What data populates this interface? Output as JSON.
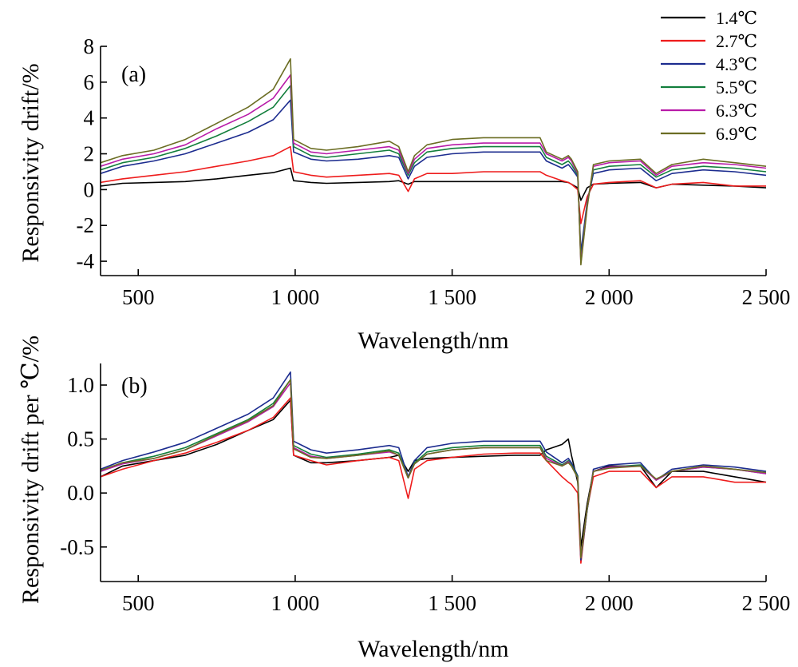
{
  "chart_data": [
    {
      "type": "line",
      "panel_label": "(a)",
      "xlabel": "Wavelength/nm",
      "ylabel": "Responsivity drift/%",
      "xlim": [
        380,
        2500
      ],
      "ylim": [
        -4.8,
        8
      ],
      "x_ticks": [
        {
          "value": 500,
          "label": "500"
        },
        {
          "value": 1000,
          "label": "1 000"
        },
        {
          "value": 1500,
          "label": "1 500"
        },
        {
          "value": 2000,
          "label": "2 000"
        },
        {
          "value": 2500,
          "label": "2 500"
        }
      ],
      "y_ticks": [
        {
          "value": -4,
          "label": "-4"
        },
        {
          "value": -2,
          "label": "-2"
        },
        {
          "value": 0,
          "label": "0"
        },
        {
          "value": 2,
          "label": "2"
        },
        {
          "value": 4,
          "label": "4"
        },
        {
          "value": 6,
          "label": "6"
        },
        {
          "value": 8,
          "label": "8"
        }
      ],
      "legend": {
        "position": "top-right"
      },
      "x": [
        380,
        450,
        550,
        650,
        750,
        850,
        930,
        985,
        995,
        1050,
        1100,
        1200,
        1300,
        1330,
        1360,
        1380,
        1420,
        1500,
        1600,
        1700,
        1780,
        1800,
        1850,
        1870,
        1880,
        1900,
        1910,
        1930,
        1950,
        2000,
        2100,
        2150,
        2200,
        2300,
        2400,
        2500
      ],
      "series": [
        {
          "name": "1.4℃",
          "color": "#000000",
          "values": [
            0.2,
            0.35,
            0.4,
            0.45,
            0.6,
            0.8,
            0.95,
            1.2,
            0.5,
            0.4,
            0.35,
            0.4,
            0.45,
            0.5,
            0.3,
            0.45,
            0.45,
            0.45,
            0.45,
            0.45,
            0.45,
            0.45,
            0.45,
            0.4,
            0.3,
            0.1,
            -0.6,
            0.1,
            0.3,
            0.35,
            0.4,
            0.1,
            0.3,
            0.25,
            0.2,
            0.1
          ]
        },
        {
          "name": "2.7℃",
          "color": "#ee1c1c",
          "values": [
            0.4,
            0.6,
            0.8,
            1.0,
            1.3,
            1.6,
            1.9,
            2.4,
            1.0,
            0.8,
            0.7,
            0.8,
            0.9,
            0.8,
            -0.1,
            0.6,
            0.9,
            0.9,
            1.0,
            1.0,
            1.0,
            0.8,
            0.5,
            0.4,
            0.3,
            0.0,
            -1.9,
            -0.4,
            0.3,
            0.4,
            0.5,
            0.1,
            0.3,
            0.4,
            0.2,
            0.2
          ]
        },
        {
          "name": "4.3℃",
          "color": "#1c2c8f",
          "values": [
            0.9,
            1.3,
            1.6,
            2.0,
            2.6,
            3.2,
            3.9,
            5.0,
            2.1,
            1.7,
            1.6,
            1.7,
            1.9,
            1.8,
            0.6,
            1.3,
            1.8,
            2.0,
            2.1,
            2.1,
            2.1,
            1.6,
            1.2,
            1.4,
            1.2,
            0.7,
            -3.5,
            -0.7,
            0.9,
            1.1,
            1.2,
            0.5,
            0.9,
            1.1,
            1.0,
            0.8
          ]
        },
        {
          "name": "5.5℃",
          "color": "#137f3c",
          "values": [
            1.1,
            1.5,
            1.8,
            2.3,
            3.0,
            3.8,
            4.6,
            5.8,
            2.4,
            1.9,
            1.8,
            2.0,
            2.2,
            2.0,
            0.8,
            1.5,
            2.1,
            2.3,
            2.4,
            2.4,
            2.4,
            1.8,
            1.4,
            1.6,
            1.4,
            0.8,
            -3.9,
            -0.8,
            1.1,
            1.3,
            1.4,
            0.7,
            1.1,
            1.3,
            1.2,
            1.0
          ]
        },
        {
          "name": "6.3℃",
          "color": "#b81ba8",
          "values": [
            1.3,
            1.7,
            2.0,
            2.5,
            3.4,
            4.2,
            5.1,
            6.4,
            2.6,
            2.1,
            2.0,
            2.2,
            2.4,
            2.2,
            0.9,
            1.7,
            2.3,
            2.5,
            2.6,
            2.6,
            2.6,
            2.0,
            1.6,
            1.8,
            1.6,
            0.9,
            -4.1,
            -0.9,
            1.3,
            1.5,
            1.6,
            0.8,
            1.3,
            1.5,
            1.4,
            1.2
          ]
        },
        {
          "name": "6.9℃",
          "color": "#6b6d23",
          "values": [
            1.5,
            1.9,
            2.2,
            2.8,
            3.7,
            4.6,
            5.6,
            7.3,
            2.8,
            2.3,
            2.2,
            2.4,
            2.7,
            2.4,
            1.0,
            1.9,
            2.5,
            2.8,
            2.9,
            2.9,
            2.9,
            2.1,
            1.7,
            1.9,
            1.7,
            1.0,
            -4.2,
            -1.0,
            1.4,
            1.6,
            1.7,
            0.9,
            1.4,
            1.7,
            1.5,
            1.3
          ]
        }
      ]
    },
    {
      "type": "line",
      "panel_label": "(b)",
      "xlabel": "Wavelength/nm",
      "ylabel": "Responsivity drift per ℃/%",
      "xlim": [
        380,
        2500
      ],
      "ylim": [
        -0.82,
        1.2
      ],
      "x_ticks": [
        {
          "value": 500,
          "label": "500"
        },
        {
          "value": 1000,
          "label": "1 000"
        },
        {
          "value": 1500,
          "label": "1 500"
        },
        {
          "value": 2000,
          "label": "2 000"
        },
        {
          "value": 2500,
          "label": "2 500"
        }
      ],
      "y_ticks": [
        {
          "value": -0.5,
          "label": "-0.5"
        },
        {
          "value": 0.0,
          "label": "0.0"
        },
        {
          "value": 0.5,
          "label": "0.5"
        },
        {
          "value": 1.0,
          "label": "1.0"
        }
      ],
      "x": [
        380,
        450,
        550,
        650,
        750,
        850,
        930,
        985,
        995,
        1050,
        1100,
        1200,
        1300,
        1330,
        1360,
        1380,
        1420,
        1500,
        1600,
        1700,
        1780,
        1800,
        1850,
        1870,
        1880,
        1900,
        1910,
        1930,
        1950,
        2000,
        2100,
        2150,
        2200,
        2300,
        2400,
        2500
      ],
      "series": [
        {
          "name": "1.4℃",
          "color": "#000000",
          "values": [
            0.15,
            0.25,
            0.3,
            0.35,
            0.45,
            0.58,
            0.68,
            0.86,
            0.35,
            0.28,
            0.28,
            0.3,
            0.33,
            0.35,
            0.2,
            0.3,
            0.32,
            0.33,
            0.34,
            0.35,
            0.35,
            0.4,
            0.45,
            0.5,
            0.35,
            0.1,
            -0.5,
            -0.1,
            0.2,
            0.25,
            0.25,
            0.05,
            0.2,
            0.2,
            0.15,
            0.1
          ]
        },
        {
          "name": "2.7℃",
          "color": "#ee1c1c",
          "values": [
            0.15,
            0.22,
            0.3,
            0.37,
            0.47,
            0.58,
            0.7,
            0.88,
            0.35,
            0.3,
            0.26,
            0.3,
            0.33,
            0.3,
            -0.05,
            0.22,
            0.3,
            0.33,
            0.36,
            0.37,
            0.37,
            0.3,
            0.15,
            0.1,
            0.08,
            0.0,
            -0.65,
            -0.15,
            0.15,
            0.2,
            0.2,
            0.05,
            0.15,
            0.15,
            0.1,
            0.1
          ]
        },
        {
          "name": "4.3℃",
          "color": "#1c2c8f",
          "values": [
            0.22,
            0.3,
            0.38,
            0.47,
            0.6,
            0.73,
            0.88,
            1.12,
            0.48,
            0.4,
            0.37,
            0.4,
            0.44,
            0.42,
            0.15,
            0.3,
            0.42,
            0.46,
            0.48,
            0.48,
            0.48,
            0.38,
            0.28,
            0.32,
            0.28,
            0.16,
            -0.62,
            -0.16,
            0.22,
            0.26,
            0.28,
            0.12,
            0.22,
            0.26,
            0.24,
            0.2
          ]
        },
        {
          "name": "5.5℃",
          "color": "#137f3c",
          "values": [
            0.2,
            0.28,
            0.34,
            0.42,
            0.55,
            0.68,
            0.83,
            1.05,
            0.44,
            0.36,
            0.33,
            0.36,
            0.4,
            0.37,
            0.14,
            0.28,
            0.38,
            0.42,
            0.44,
            0.44,
            0.44,
            0.34,
            0.26,
            0.3,
            0.26,
            0.15,
            -0.6,
            -0.15,
            0.2,
            0.24,
            0.26,
            0.12,
            0.2,
            0.24,
            0.22,
            0.18
          ]
        },
        {
          "name": "6.3℃",
          "color": "#b81ba8",
          "values": [
            0.2,
            0.27,
            0.32,
            0.4,
            0.53,
            0.66,
            0.8,
            1.02,
            0.42,
            0.34,
            0.32,
            0.35,
            0.38,
            0.35,
            0.14,
            0.27,
            0.36,
            0.4,
            0.42,
            0.42,
            0.42,
            0.32,
            0.25,
            0.29,
            0.25,
            0.14,
            -0.6,
            -0.14,
            0.2,
            0.24,
            0.25,
            0.12,
            0.2,
            0.24,
            0.22,
            0.18
          ]
        },
        {
          "name": "6.9℃",
          "color": "#6b6d23",
          "values": [
            0.21,
            0.28,
            0.32,
            0.4,
            0.54,
            0.67,
            0.81,
            1.05,
            0.41,
            0.33,
            0.32,
            0.35,
            0.39,
            0.35,
            0.14,
            0.27,
            0.36,
            0.4,
            0.42,
            0.42,
            0.42,
            0.3,
            0.25,
            0.28,
            0.25,
            0.14,
            -0.6,
            -0.14,
            0.2,
            0.23,
            0.25,
            0.13,
            0.2,
            0.25,
            0.22,
            0.19
          ]
        }
      ]
    }
  ]
}
